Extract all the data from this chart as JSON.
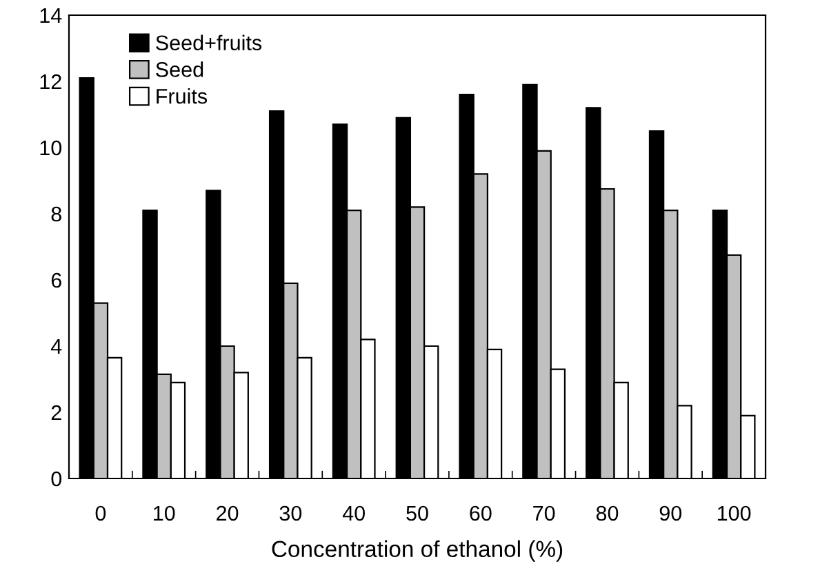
{
  "chart_data": {
    "type": "bar",
    "xlabel": "Concentration of ethanol (%)",
    "categories": [
      "0",
      "10",
      "20",
      "30",
      "40",
      "50",
      "60",
      "70",
      "80",
      "90",
      "100"
    ],
    "series": [
      {
        "name": "Seed+fruits",
        "color": "#000000",
        "values": [
          12.1,
          8.1,
          8.7,
          11.1,
          10.7,
          10.9,
          11.6,
          11.9,
          11.2,
          10.5,
          8.1
        ]
      },
      {
        "name": "Seed",
        "color": "#c0c0c0",
        "values": [
          5.3,
          3.15,
          4.0,
          5.9,
          8.1,
          8.2,
          9.2,
          9.9,
          8.75,
          8.1,
          6.75
        ]
      },
      {
        "name": "Fruits",
        "color": "#ffffff",
        "values": [
          3.65,
          2.9,
          3.2,
          3.65,
          4.2,
          4.0,
          3.9,
          3.3,
          2.9,
          2.2,
          1.9
        ]
      }
    ],
    "ylim": [
      0,
      14
    ],
    "yticks": [
      0,
      2,
      4,
      6,
      8,
      10,
      12,
      14
    ],
    "grid": false,
    "legend": "top left"
  }
}
